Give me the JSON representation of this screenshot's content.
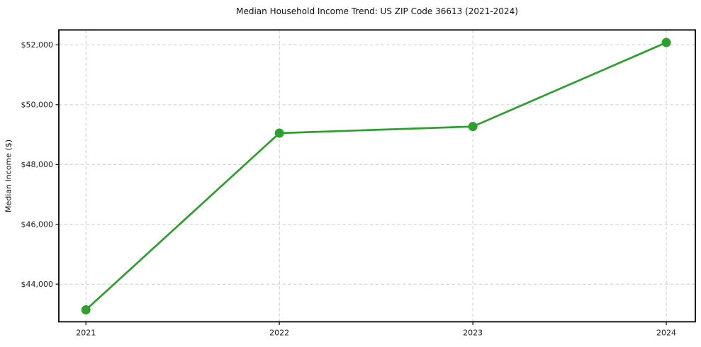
{
  "figure": {
    "background": "#ffffff"
  },
  "chart_data": {
    "type": "line",
    "title": "Median Household Income Trend: US ZIP Code 36613 (2021-2024)",
    "xlabel": "",
    "ylabel": "Median Income ($)",
    "x": [
      2021,
      2022,
      2023,
      2024
    ],
    "x_tick_labels": [
      "2021",
      "2022",
      "2023",
      "2024"
    ],
    "series": [
      {
        "name": "Median Household Income",
        "values": [
          43140,
          49050,
          49270,
          52080
        ],
        "color": "#2ca02c",
        "marker": "circle",
        "marker_radius": 6.5,
        "line_width": 2.7
      }
    ],
    "y_ticks": [
      44000,
      46000,
      48000,
      50000,
      52000
    ],
    "y_tick_labels": [
      "$44,000",
      "$46,000",
      "$48,000",
      "$50,000",
      "$52,000"
    ],
    "xlim": [
      2020.86,
      2024.15
    ],
    "ylim": [
      42740,
      52500
    ],
    "grid": true,
    "grid_style": "dashed",
    "grid_color": "#cccccc",
    "axis_color": "#000000",
    "tick_label_color": "#1a1a1a",
    "legend": "none",
    "plot_background": "#ffffff"
  }
}
